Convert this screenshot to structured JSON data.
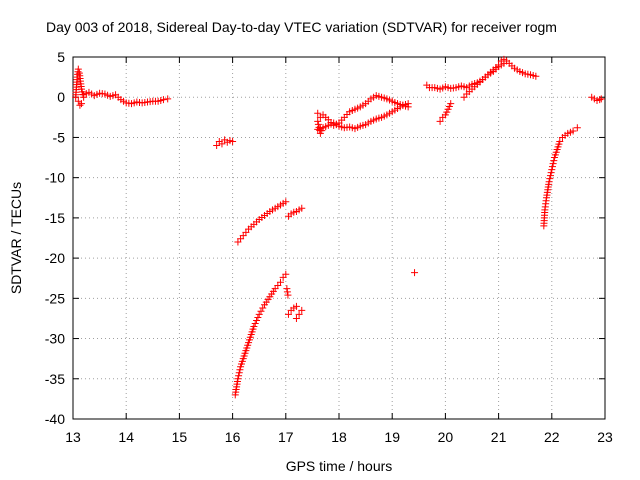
{
  "chart_data": {
    "type": "scatter",
    "title": "Day 003 of 2018, Sidereal Day-to-day VTEC variation (SDTVAR) for receiver rogm",
    "xlabel": "GPS time / hours",
    "ylabel": "SDTVAR / TECUs",
    "xlim": [
      13,
      23
    ],
    "ylim": [
      -40,
      5
    ],
    "xticks": [
      "13",
      "14",
      "15",
      "16",
      "17",
      "18",
      "19",
      "20",
      "21",
      "22",
      "23"
    ],
    "yticks": [
      "5",
      "0",
      "-5",
      "-10",
      "-15",
      "-20",
      "-25",
      "-30",
      "-35",
      "-40"
    ],
    "grid": true,
    "marker": "+",
    "series_color": "#ff0000",
    "segments": [
      {
        "x": [
          13.05,
          13.08,
          13.1,
          13.12,
          13.14,
          13.16,
          13.2
        ],
        "y": [
          0,
          2.5,
          3.5,
          3,
          2,
          1,
          0
        ]
      },
      {
        "x": [
          13.1,
          13.13,
          13.16
        ],
        "y": [
          -0.5,
          -1,
          -0.8
        ]
      },
      {
        "x": [
          13.2,
          13.3,
          13.4,
          13.5,
          13.6,
          13.7,
          13.8,
          13.9,
          14.0,
          14.1,
          14.2,
          14.3,
          14.4,
          14.5,
          14.6,
          14.7,
          14.78
        ],
        "y": [
          0.3,
          0.6,
          0.2,
          0.5,
          0.4,
          0.1,
          0.3,
          -0.3,
          -0.7,
          -0.8,
          -0.6,
          -0.7,
          -0.6,
          -0.5,
          -0.5,
          -0.3,
          -0.2
        ]
      },
      {
        "x": [
          15.7,
          15.75,
          15.8,
          15.85,
          15.9,
          15.95,
          16.0
        ],
        "y": [
          -6,
          -5.5,
          -5.8,
          -5.3,
          -5.6,
          -5.4,
          -5.5
        ]
      },
      {
        "x": [
          16.1,
          16.2,
          16.3,
          16.4,
          16.5,
          16.6,
          16.7,
          16.8,
          16.9,
          17.0
        ],
        "y": [
          -18,
          -17.2,
          -16.4,
          -15.8,
          -15.2,
          -14.7,
          -14.2,
          -13.8,
          -13.4,
          -13
        ]
      },
      {
        "x": [
          17.05,
          17.1,
          17.15,
          17.2,
          17.25,
          17.3
        ],
        "y": [
          -14.8,
          -14.5,
          -14.3,
          -14.2,
          -14.0,
          -13.8
        ]
      },
      {
        "x": [
          16.05,
          16.1,
          16.15,
          16.2,
          16.25,
          16.3,
          16.4,
          16.5,
          16.6,
          16.7,
          16.8,
          16.9,
          16.95,
          17.0
        ],
        "y": [
          -37,
          -35,
          -33.5,
          -32.5,
          -31.5,
          -30.5,
          -28.5,
          -27,
          -25.8,
          -24.8,
          -23.8,
          -23,
          -22.4,
          -22
        ]
      },
      {
        "x": [
          17.02,
          17.04
        ],
        "y": [
          -23.8,
          -24.6
        ]
      },
      {
        "x": [
          17.05,
          17.1,
          17.15,
          17.2
        ],
        "y": [
          -27,
          -26.5,
          -26.2,
          -26
        ]
      },
      {
        "x": [
          17.2,
          17.25,
          17.3
        ],
        "y": [
          -27.5,
          -27,
          -26.5
        ]
      },
      {
        "x": [
          17.6,
          17.65,
          17.7,
          17.8,
          17.9,
          18.0,
          18.1,
          18.2,
          18.3,
          18.4,
          18.5,
          18.6,
          18.7,
          18.8,
          18.9,
          19.0,
          19.1,
          19.2,
          19.3
        ],
        "y": [
          -2,
          -2.5,
          -2.2,
          -2.8,
          -3.5,
          -3.2,
          -2.5,
          -1.8,
          -1.5,
          -1.2,
          -0.8,
          -0.2,
          0.2,
          0.0,
          -0.2,
          -0.5,
          -0.8,
          -1.0,
          -1.2
        ]
      },
      {
        "x": [
          17.6,
          17.7,
          17.8,
          17.9,
          18.0,
          18.1,
          18.2,
          18.3,
          18.4,
          18.5,
          18.6,
          18.7,
          18.8,
          18.9,
          19.0,
          19.1,
          19.2,
          19.3
        ],
        "y": [
          -4,
          -3.8,
          -3.5,
          -3.2,
          -3.6,
          -3.8,
          -3.7,
          -3.9,
          -3.6,
          -3.4,
          -3.0,
          -2.7,
          -2.5,
          -2.2,
          -1.8,
          -1.4,
          -1.0,
          -0.8
        ]
      },
      {
        "x": [
          17.6,
          17.65,
          17.7
        ],
        "y": [
          -3,
          -4.5,
          -3.8
        ]
      },
      {
        "x": [
          19.42
        ],
        "y": [
          -21.8
        ]
      },
      {
        "x": [
          19.9,
          19.95,
          20.0,
          20.05,
          20.1
        ],
        "y": [
          -3,
          -2.5,
          -2.2,
          -1.5,
          -0.8
        ]
      },
      {
        "x": [
          19.65,
          19.7,
          19.8,
          19.9,
          20.0,
          20.1,
          20.2,
          20.3,
          20.4,
          20.5,
          20.6,
          20.7,
          20.8,
          20.9,
          21.0,
          21.05,
          21.1,
          21.15,
          21.2,
          21.3,
          21.4,
          21.5,
          21.6,
          21.7
        ],
        "y": [
          1.5,
          1.2,
          1.2,
          1.0,
          1.3,
          1.1,
          1.2,
          1.4,
          1.2,
          1.6,
          1.8,
          2.2,
          2.8,
          3.4,
          4.0,
          4.5,
          4.7,
          4.5,
          4.2,
          3.6,
          3.2,
          2.9,
          2.8,
          2.6
        ]
      },
      {
        "x": [
          20.35,
          20.4,
          20.5,
          20.6,
          20.7,
          20.8,
          20.9,
          21.0,
          21.1
        ],
        "y": [
          0,
          0.4,
          1.0,
          1.6,
          2.2,
          2.8,
          3.2,
          3.8,
          4.2
        ]
      },
      {
        "x": [
          21.85,
          21.87,
          21.9,
          21.95,
          22.0,
          22.05,
          22.1,
          22.15,
          22.2,
          22.3,
          22.4,
          22.48
        ],
        "y": [
          -16,
          -14,
          -12.5,
          -10.5,
          -9,
          -7.5,
          -6.5,
          -5.5,
          -5,
          -4.5,
          -4.2,
          -3.8
        ]
      },
      {
        "x": [
          22.75,
          22.8,
          22.85,
          22.9,
          22.93
        ],
        "y": [
          0,
          -0.2,
          -0.4,
          -0.3,
          -0.2
        ]
      }
    ]
  }
}
